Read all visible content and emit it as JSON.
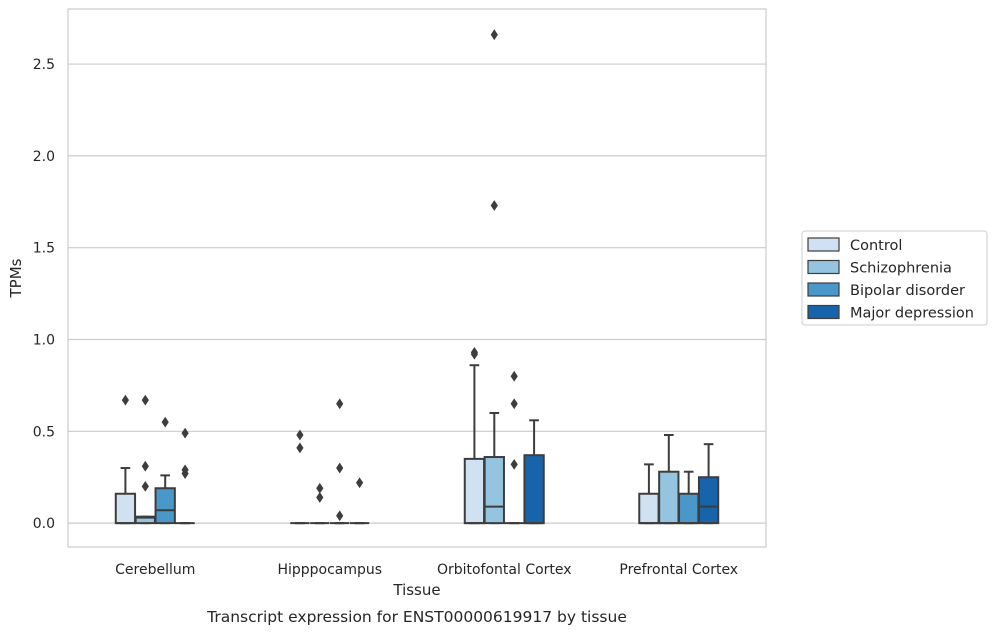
{
  "chart_data": {
    "type": "boxplot",
    "caption": "Transcript expression for ENST00000619917 by tissue",
    "xlabel": "Tissue",
    "ylabel": "TPMs",
    "ylim": [
      -0.13,
      2.8
    ],
    "yticks": [
      0.0,
      0.5,
      1.0,
      1.5,
      2.0,
      2.5
    ],
    "ytick_labels": [
      "0.0",
      "0.5",
      "1.0",
      "1.5",
      "2.0",
      "2.5"
    ],
    "grid": "horizontal",
    "legend_position": "right",
    "categories": [
      "Cerebellum",
      "Hipppocampus",
      "Orbitofontal Cortex",
      "Prefrontal Cortex"
    ],
    "series": [
      {
        "name": "Control",
        "color": "#d0e1f2",
        "boxes": [
          {
            "q1": 0.0,
            "median": 0.0,
            "q3": 0.16,
            "whisker_low": 0.0,
            "whisker_high": 0.3,
            "outliers": [
              0.67
            ]
          },
          {
            "q1": 0.0,
            "median": 0.0,
            "q3": 0.0,
            "whisker_low": 0.0,
            "whisker_high": 0.0,
            "outliers": [
              0.48,
              0.41
            ]
          },
          {
            "q1": 0.0,
            "median": 0.0,
            "q3": 0.35,
            "whisker_low": 0.0,
            "whisker_high": 0.86,
            "outliers": [
              0.93,
              0.92
            ]
          },
          {
            "q1": 0.0,
            "median": 0.0,
            "q3": 0.16,
            "whisker_low": 0.0,
            "whisker_high": 0.32,
            "outliers": []
          }
        ]
      },
      {
        "name": "Schizophrenia",
        "color": "#94c4df",
        "boxes": [
          {
            "q1": 0.0,
            "median": 0.03,
            "q3": 0.035,
            "whisker_low": 0.0,
            "whisker_high": 0.035,
            "outliers": [
              0.31,
              0.2,
              0.67
            ]
          },
          {
            "q1": 0.0,
            "median": 0.0,
            "q3": 0.0,
            "whisker_low": 0.0,
            "whisker_high": 0.0,
            "outliers": [
              0.19,
              0.14
            ]
          },
          {
            "q1": 0.0,
            "median": 0.09,
            "q3": 0.36,
            "whisker_low": 0.0,
            "whisker_high": 0.6,
            "outliers": [
              2.66,
              1.73
            ]
          },
          {
            "q1": 0.0,
            "median": 0.0,
            "q3": 0.28,
            "whisker_low": 0.0,
            "whisker_high": 0.48,
            "outliers": []
          }
        ]
      },
      {
        "name": "Bipolar disorder",
        "color": "#4a98c9",
        "boxes": [
          {
            "q1": 0.0,
            "median": 0.07,
            "q3": 0.19,
            "whisker_low": 0.0,
            "whisker_high": 0.26,
            "outliers": [
              0.55
            ]
          },
          {
            "q1": 0.0,
            "median": 0.0,
            "q3": 0.0,
            "whisker_low": 0.0,
            "whisker_high": 0.0,
            "outliers": [
              0.65,
              0.3,
              0.04
            ]
          },
          {
            "q1": 0.0,
            "median": 0.0,
            "q3": 0.0,
            "whisker_low": 0.0,
            "whisker_high": 0.0,
            "outliers": [
              0.8,
              0.65,
              0.32
            ]
          },
          {
            "q1": 0.0,
            "median": 0.0,
            "q3": 0.16,
            "whisker_low": 0.0,
            "whisker_high": 0.28,
            "outliers": []
          }
        ]
      },
      {
        "name": "Major depression",
        "color": "#1764ab",
        "boxes": [
          {
            "q1": 0.0,
            "median": 0.0,
            "q3": 0.0,
            "whisker_low": 0.0,
            "whisker_high": 0.0,
            "outliers": [
              0.49,
              0.29,
              0.27
            ]
          },
          {
            "q1": 0.0,
            "median": 0.0,
            "q3": 0.0,
            "whisker_low": 0.0,
            "whisker_high": 0.0,
            "outliers": [
              0.22
            ]
          },
          {
            "q1": 0.0,
            "median": 0.0,
            "q3": 0.37,
            "whisker_low": 0.0,
            "whisker_high": 0.56,
            "outliers": []
          },
          {
            "q1": 0.0,
            "median": 0.09,
            "q3": 0.25,
            "whisker_low": 0.0,
            "whisker_high": 0.43,
            "outliers": []
          }
        ]
      }
    ]
  }
}
